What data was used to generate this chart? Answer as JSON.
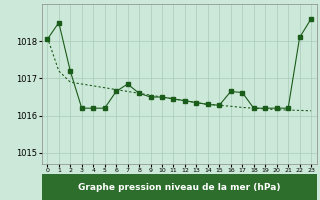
{
  "line1_x": [
    0,
    1,
    2,
    3,
    4,
    5,
    6,
    7,
    8,
    9,
    10,
    11,
    12,
    13,
    14,
    15,
    16,
    17,
    18,
    19,
    20,
    21,
    22,
    23
  ],
  "line1_y": [
    1018.05,
    1018.5,
    1017.2,
    1016.2,
    1016.2,
    1016.2,
    1016.65,
    1016.85,
    1016.6,
    1016.5,
    1016.5,
    1016.45,
    1016.4,
    1016.35,
    1016.3,
    1016.28,
    1016.65,
    1016.62,
    1016.2,
    1016.2,
    1016.2,
    1016.2,
    1018.1,
    1018.6
  ],
  "line2_x": [
    0,
    1,
    2,
    3,
    4,
    5,
    6,
    7,
    8,
    9,
    10,
    11,
    12,
    13,
    14,
    15,
    16,
    17,
    18,
    19,
    20,
    21,
    22,
    23
  ],
  "line2_y": [
    1018.1,
    1017.2,
    1016.9,
    1016.85,
    1016.8,
    1016.75,
    1016.7,
    1016.65,
    1016.6,
    1016.55,
    1016.5,
    1016.45,
    1016.4,
    1016.35,
    1016.3,
    1016.28,
    1016.25,
    1016.22,
    1016.2,
    1016.18,
    1016.16,
    1016.15,
    1016.14,
    1016.13
  ],
  "line_color": "#1a5c1a",
  "bg_color": "#cce8d8",
  "grid_color": "#aaccbb",
  "xlabel": "Graphe pression niveau de la mer (hPa)",
  "xlabel_bg": "#2d6e2d",
  "xlabel_fg": "#ffffff",
  "ylim": [
    1014.7,
    1019.0
  ],
  "yticks": [
    1015,
    1016,
    1017,
    1018
  ],
  "xticks": [
    0,
    1,
    2,
    3,
    4,
    5,
    6,
    7,
    8,
    9,
    10,
    11,
    12,
    13,
    14,
    15,
    16,
    17,
    18,
    19,
    20,
    21,
    22,
    23
  ]
}
